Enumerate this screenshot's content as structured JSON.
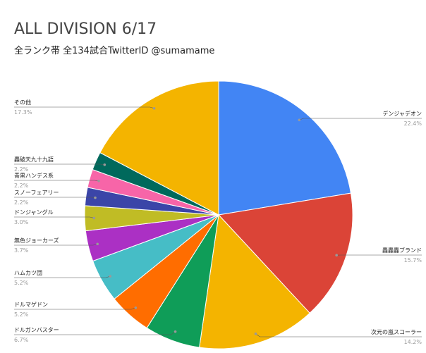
{
  "chart_data": {
    "type": "pie",
    "title": "ALL DIVISION 6/17",
    "subtitle": "全ランク帯 全134試合TwitterID @sumamame",
    "categories": [
      "デンジャデオン",
      "轟轟轟ブランド",
      "次元の嵐スコーラー",
      "ドルガンバスター",
      "ドルマゲドン",
      "ハムカツ団",
      "無色ジョーカーズ",
      "ドンジャングル",
      "スノーフェアリー",
      "青黒ハンデス系",
      "轟破天九十九語",
      "その他"
    ],
    "values": [
      22.4,
      15.7,
      14.2,
      6.7,
      5.2,
      5.2,
      3.7,
      3.0,
      2.2,
      2.2,
      2.2,
      17.3
    ],
    "value_labels": [
      "22.4%",
      "15.7%",
      "14.2%",
      "6.7%",
      "5.2%",
      "5.2%",
      "3.7%",
      "3.0%",
      "2.2%",
      "2.2%",
      "2.2%",
      "17.3%"
    ],
    "colors": [
      "#4285f4",
      "#db4437",
      "#f4b400",
      "#0f9d58",
      "#ff6d00",
      "#46bdc6",
      "#ab30c4",
      "#c0bc25",
      "#3b45a8",
      "#f765a8",
      "#00695c",
      "#f4b400"
    ]
  }
}
